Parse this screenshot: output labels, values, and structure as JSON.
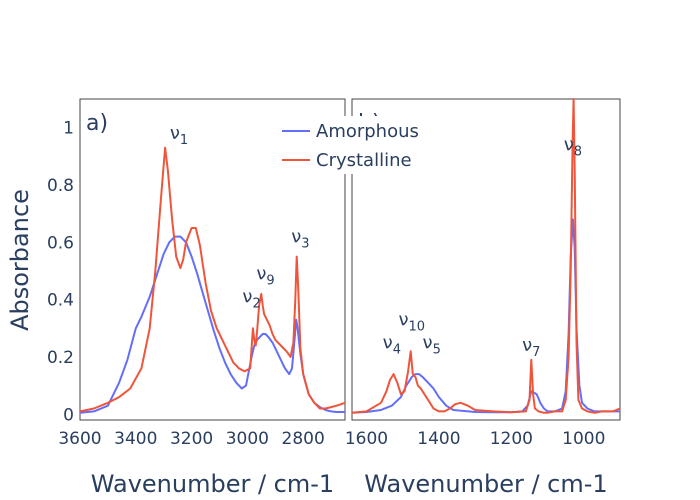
{
  "chart_data": {
    "type": "line",
    "ylabel": "Absorbance",
    "ylim": [
      -0.02,
      1.1
    ],
    "yticks": [
      0,
      0.2,
      0.4,
      0.6,
      0.8,
      1
    ],
    "ytick_labels": [
      "0",
      "0.2",
      "0.4",
      "0.6",
      "0.8",
      "1"
    ],
    "legend": {
      "placement": "top-center",
      "items": [
        {
          "name": "Amorphous",
          "color": "#636efa"
        },
        {
          "name": "Crystalline",
          "color": "#ef553b"
        }
      ]
    },
    "panels": [
      {
        "label": "a)",
        "xlabel": "Wavenumber / cm-1",
        "xlim": [
          3600,
          2650
        ],
        "xticks": [
          3600,
          3400,
          3200,
          3000,
          2800
        ],
        "xtick_labels": [
          "3600",
          "3400",
          "3200",
          "3000",
          "2800"
        ],
        "annotations": [
          {
            "base": "ν",
            "sub": "1",
            "x": 3245,
            "y": 0.96
          },
          {
            "base": "ν",
            "sub": "9",
            "x": 2935,
            "y": 0.47
          },
          {
            "base": "ν",
            "sub": "2",
            "x": 2985,
            "y": 0.39
          },
          {
            "base": "ν",
            "sub": "3",
            "x": 2810,
            "y": 0.6
          }
        ],
        "series": [
          {
            "name": "Amorphous",
            "color": "#636efa",
            "x": [
              3600,
              3550,
              3500,
              3460,
              3430,
              3400,
              3380,
              3350,
              3320,
              3300,
              3280,
              3260,
              3240,
              3220,
              3200,
              3180,
              3150,
              3120,
              3100,
              3080,
              3060,
              3040,
              3020,
              3005,
              2995,
              2985,
              2975,
              2965,
              2955,
              2945,
              2935,
              2925,
              2910,
              2895,
              2880,
              2865,
              2850,
              2840,
              2830,
              2825,
              2820,
              2810,
              2800,
              2780,
              2760,
              2740,
              2720,
              2700,
              2680,
              2650
            ],
            "y": [
              0.005,
              0.01,
              0.03,
              0.11,
              0.19,
              0.3,
              0.34,
              0.41,
              0.5,
              0.56,
              0.6,
              0.62,
              0.62,
              0.6,
              0.55,
              0.49,
              0.39,
              0.29,
              0.23,
              0.18,
              0.14,
              0.11,
              0.09,
              0.1,
              0.15,
              0.2,
              0.24,
              0.26,
              0.27,
              0.28,
              0.28,
              0.27,
              0.25,
              0.22,
              0.19,
              0.16,
              0.14,
              0.16,
              0.27,
              0.33,
              0.3,
              0.21,
              0.14,
              0.07,
              0.04,
              0.025,
              0.015,
              0.01,
              0.008,
              0.008
            ]
          },
          {
            "name": "Crystalline",
            "color": "#ef553b",
            "x": [
              3600,
              3550,
              3500,
              3460,
              3420,
              3380,
              3350,
              3330,
              3310,
              3295,
              3285,
              3270,
              3255,
              3240,
              3230,
              3220,
              3200,
              3185,
              3170,
              3150,
              3130,
              3110,
              3090,
              3070,
              3050,
              3030,
              3010,
              2990,
              2980,
              2975,
              2970,
              2965,
              2958,
              2950,
              2945,
              2940,
              2930,
              2920,
              2910,
              2900,
              2880,
              2860,
              2845,
              2835,
              2828,
              2823,
              2818,
              2810,
              2800,
              2780,
              2760,
              2740,
              2720,
              2700,
              2680,
              2650
            ],
            "y": [
              0.01,
              0.02,
              0.04,
              0.06,
              0.09,
              0.16,
              0.3,
              0.5,
              0.75,
              0.93,
              0.85,
              0.68,
              0.55,
              0.51,
              0.54,
              0.6,
              0.65,
              0.65,
              0.59,
              0.46,
              0.36,
              0.3,
              0.26,
              0.22,
              0.18,
              0.16,
              0.15,
              0.16,
              0.3,
              0.26,
              0.24,
              0.29,
              0.38,
              0.42,
              0.38,
              0.35,
              0.33,
              0.31,
              0.28,
              0.26,
              0.24,
              0.22,
              0.2,
              0.25,
              0.4,
              0.55,
              0.45,
              0.23,
              0.14,
              0.07,
              0.04,
              0.02,
              0.02,
              0.025,
              0.03,
              0.04
            ]
          }
        ]
      },
      {
        "label": "b)",
        "xlabel": "Wavenumber / cm-1",
        "xlim": [
          1640,
          900
        ],
        "xticks": [
          1600,
          1400,
          1200,
          1000
        ],
        "xtick_labels": [
          "1600",
          "1400",
          "1200",
          "1000"
        ],
        "annotations": [
          {
            "base": "ν",
            "sub": "4",
            "x": 1530,
            "y": 0.23
          },
          {
            "base": "ν",
            "sub": "10",
            "x": 1475,
            "y": 0.31
          },
          {
            "base": "ν",
            "sub": "5",
            "x": 1420,
            "y": 0.23
          },
          {
            "base": "ν",
            "sub": "7",
            "x": 1145,
            "y": 0.22
          },
          {
            "base": "ν",
            "sub": "8",
            "x": 1030,
            "y": 0.92
          }
        ],
        "series": [
          {
            "name": "Amorphous",
            "color": "#636efa",
            "x": [
              1640,
              1600,
              1560,
              1530,
              1505,
              1490,
              1475,
              1465,
              1455,
              1445,
              1430,
              1415,
              1400,
              1380,
              1360,
              1300,
              1250,
              1200,
              1170,
              1155,
              1145,
              1130,
              1120,
              1110,
              1100,
              1080,
              1060,
              1050,
              1042,
              1036,
              1030,
              1025,
              1020,
              1012,
              1005,
              990,
              970,
              950,
              920,
              900
            ],
            "y": [
              0.005,
              0.008,
              0.015,
              0.03,
              0.06,
              0.1,
              0.13,
              0.14,
              0.14,
              0.13,
              0.11,
              0.09,
              0.06,
              0.03,
              0.015,
              0.008,
              0.007,
              0.007,
              0.01,
              0.03,
              0.08,
              0.07,
              0.04,
              0.02,
              0.01,
              0.01,
              0.02,
              0.08,
              0.28,
              0.55,
              0.68,
              0.58,
              0.3,
              0.1,
              0.04,
              0.02,
              0.01,
              0.01,
              0.01,
              0.01
            ]
          },
          {
            "name": "Crystalline",
            "color": "#ef553b",
            "x": [
              1640,
              1600,
              1560,
              1545,
              1535,
              1525,
              1515,
              1505,
              1495,
              1485,
              1478,
              1472,
              1465,
              1458,
              1450,
              1440,
              1430,
              1415,
              1400,
              1385,
              1370,
              1355,
              1340,
              1320,
              1300,
              1250,
              1200,
              1160,
              1150,
              1145,
              1140,
              1135,
              1125,
              1110,
              1100,
              1080,
              1060,
              1050,
              1042,
              1036,
              1031,
              1028,
              1025,
              1020,
              1015,
              1005,
              990,
              970,
              950,
              920,
              900
            ],
            "y": [
              0.005,
              0.01,
              0.04,
              0.08,
              0.12,
              0.14,
              0.11,
              0.07,
              0.08,
              0.15,
              0.22,
              0.14,
              0.13,
              0.1,
              0.09,
              0.07,
              0.05,
              0.02,
              0.01,
              0.01,
              0.02,
              0.035,
              0.04,
              0.03,
              0.015,
              0.01,
              0.007,
              0.01,
              0.05,
              0.19,
              0.07,
              0.02,
              0.01,
              0.005,
              0.005,
              0.01,
              0.01,
              0.05,
              0.2,
              0.5,
              0.95,
              1.1,
              0.85,
              0.25,
              0.05,
              0.02,
              0.01,
              0.005,
              0.01,
              0.01,
              0.02
            ]
          }
        ]
      }
    ]
  }
}
